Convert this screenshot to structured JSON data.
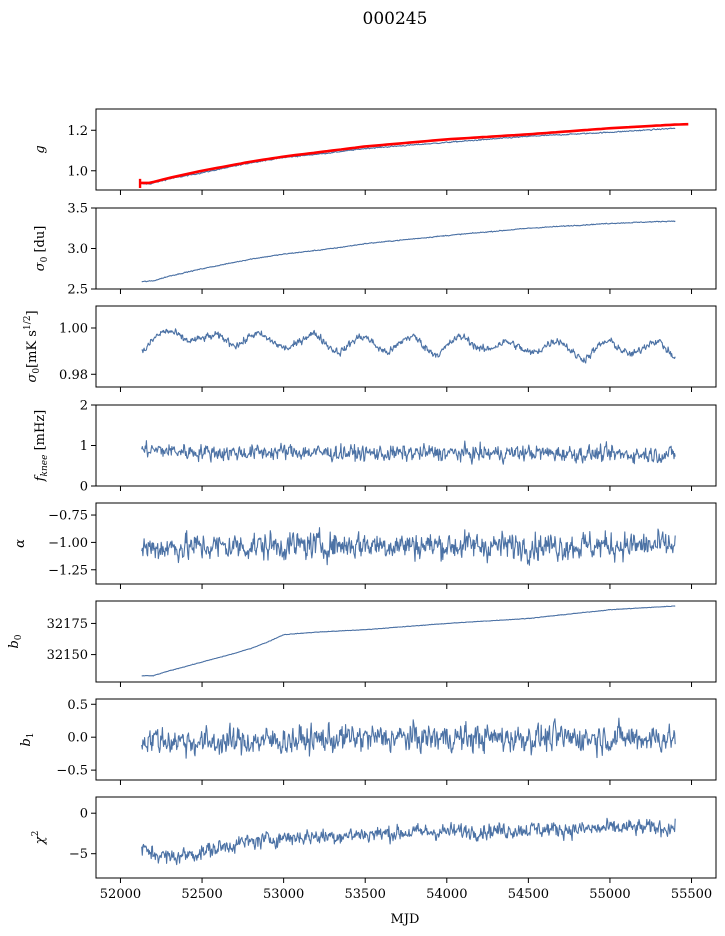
{
  "figure": {
    "title": "000245",
    "xlabel": "MJD"
  },
  "colors": {
    "series": "#4c72a5",
    "model": "#ff0000",
    "axis": "#000000"
  },
  "chart_data": [
    {
      "type": "line",
      "ylabel": "g",
      "xlim": [
        51850,
        55650
      ],
      "ylim": [
        0.905,
        1.305
      ],
      "yticks": [
        1.0,
        1.2
      ],
      "yticklabels": [
        "1.0",
        "1.2"
      ],
      "series": [
        {
          "key": "g",
          "x": [
            52130,
            52180,
            52300,
            52500,
            52800,
            53000,
            53300,
            53500,
            54000,
            54500,
            55000,
            55400
          ],
          "y": [
            0.935,
            0.935,
            0.96,
            0.99,
            1.04,
            1.065,
            1.09,
            1.11,
            1.14,
            1.17,
            1.19,
            1.21
          ]
        },
        {
          "key": "model",
          "x": [
            52120,
            52180,
            52300,
            52500,
            52800,
            53000,
            53300,
            53500,
            54000,
            54500,
            55000,
            55400,
            55480
          ],
          "y": [
            0.94,
            0.94,
            0.965,
            1.0,
            1.045,
            1.07,
            1.1,
            1.12,
            1.155,
            1.18,
            1.21,
            1.228,
            1.23
          ]
        }
      ]
    },
    {
      "type": "line",
      "ylabel": "σ0 [du]",
      "xlim": [
        51850,
        55650
      ],
      "ylim": [
        2.5,
        3.5
      ],
      "yticks": [
        2.5,
        3.0,
        3.5
      ],
      "yticklabels": [
        "2.5",
        "3.0",
        "3.5"
      ],
      "series": [
        {
          "key": "sigma0_du",
          "x": [
            52130,
            52200,
            52300,
            52500,
            52800,
            53000,
            53300,
            53500,
            54000,
            54500,
            55000,
            55400
          ],
          "y": [
            2.59,
            2.6,
            2.66,
            2.75,
            2.87,
            2.93,
            3.0,
            3.06,
            3.16,
            3.25,
            3.31,
            3.34
          ]
        }
      ]
    },
    {
      "type": "line",
      "ylabel": "σ0[mK s^1/2]",
      "xlim": [
        51850,
        55650
      ],
      "ylim": [
        0.9745,
        1.0095
      ],
      "yticks": [
        0.98,
        1.0
      ],
      "yticklabels": [
        "0.98",
        "1.00"
      ],
      "series": [
        {
          "key": "sigma0_mk",
          "x": [
            52130,
            52200,
            52350,
            52450,
            52550,
            52700,
            52800,
            52900,
            53050,
            53200,
            53350,
            53500,
            53650,
            53800,
            53950,
            54100,
            54250,
            54400,
            54550,
            54700,
            54850,
            55000,
            55150,
            55300,
            55400
          ],
          "y": [
            0.992,
            0.995,
            0.997,
            0.997,
            0.994,
            0.995,
            0.997,
            0.993,
            0.994,
            0.995,
            0.992,
            0.994,
            0.992,
            0.994,
            0.991,
            0.994,
            0.993,
            0.991,
            0.992,
            0.992,
            0.989,
            0.992,
            0.991,
            0.992,
            0.989
          ]
        }
      ]
    },
    {
      "type": "line",
      "ylabel": "f_knee [mHz]",
      "xlim": [
        51850,
        55650
      ],
      "ylim": [
        0,
        2
      ],
      "yticks": [
        0,
        1,
        2
      ],
      "yticklabels": [
        "0",
        "1",
        "2"
      ],
      "series": [
        {
          "key": "fknee",
          "x": [
            52130,
            52400,
            52700,
            53000,
            53300,
            53600,
            53900,
            54200,
            54500,
            54800,
            55100,
            55400
          ],
          "y": [
            0.9,
            0.85,
            0.82,
            0.85,
            0.82,
            0.8,
            0.82,
            0.8,
            0.82,
            0.8,
            0.78,
            0.78
          ]
        }
      ]
    },
    {
      "type": "line",
      "ylabel": "α",
      "xlim": [
        51850,
        55650
      ],
      "ylim": [
        -1.38,
        -0.64
      ],
      "yticks": [
        -1.25,
        -1.0,
        -0.75
      ],
      "yticklabels": [
        "−1.25",
        "−1.00",
        "−0.75"
      ],
      "series": [
        {
          "key": "alpha",
          "x": [
            52130,
            52500,
            53000,
            53500,
            54000,
            54500,
            55000,
            55400
          ],
          "y": [
            -1.05,
            -1.04,
            -1.03,
            -1.02,
            -1.03,
            -1.03,
            -1.03,
            -1.03
          ]
        }
      ]
    },
    {
      "type": "line",
      "ylabel": "b0",
      "xlim": [
        51850,
        55650
      ],
      "ylim": [
        32128,
        32193
      ],
      "yticks": [
        32150,
        32175
      ],
      "yticklabels": [
        "32150",
        "32175"
      ],
      "series": [
        {
          "key": "b0",
          "x": [
            52130,
            52200,
            52300,
            52500,
            52700,
            52800,
            52900,
            53000,
            53200,
            53500,
            54000,
            54500,
            55000,
            55400
          ],
          "y": [
            32133,
            32133,
            32137,
            32144,
            32151,
            32155,
            32160,
            32166,
            32168,
            32170,
            32175,
            32179,
            32186,
            32189
          ]
        }
      ]
    },
    {
      "type": "line",
      "ylabel": "b1",
      "xlim": [
        51850,
        55650
      ],
      "ylim": [
        -0.65,
        0.58
      ],
      "yticks": [
        -0.5,
        0.0,
        0.5
      ],
      "yticklabels": [
        "−0.5",
        "0.0",
        "0.5"
      ],
      "series": [
        {
          "key": "b1",
          "x": [
            52130,
            52500,
            53000,
            53500,
            54000,
            54500,
            55000,
            55400
          ],
          "y": [
            -0.02,
            -0.08,
            -0.05,
            -0.01,
            -0.01,
            -0.01,
            -0.01,
            -0.01
          ]
        }
      ]
    },
    {
      "type": "line",
      "ylabel": "χ2",
      "xlim": [
        51850,
        55650
      ],
      "ylim": [
        -8,
        2
      ],
      "yticks": [
        -5,
        0
      ],
      "yticklabels": [
        "−5",
        "0"
      ],
      "xticks": [
        52000,
        52500,
        53000,
        53500,
        54000,
        54500,
        55000,
        55500
      ],
      "xticklabels": [
        "52000",
        "52500",
        "53000",
        "53500",
        "54000",
        "54500",
        "55000",
        "55500"
      ],
      "series": [
        {
          "key": "chi2",
          "x": [
            52130,
            52300,
            52500,
            52700,
            53000,
            53300,
            53600,
            53900,
            54200,
            54500,
            54800,
            55100,
            55400
          ],
          "y": [
            -4.5,
            -5.5,
            -4.8,
            -3.8,
            -3.0,
            -2.8,
            -2.5,
            -2.3,
            -2.2,
            -2.0,
            -2.0,
            -1.8,
            -1.8
          ]
        }
      ]
    }
  ]
}
